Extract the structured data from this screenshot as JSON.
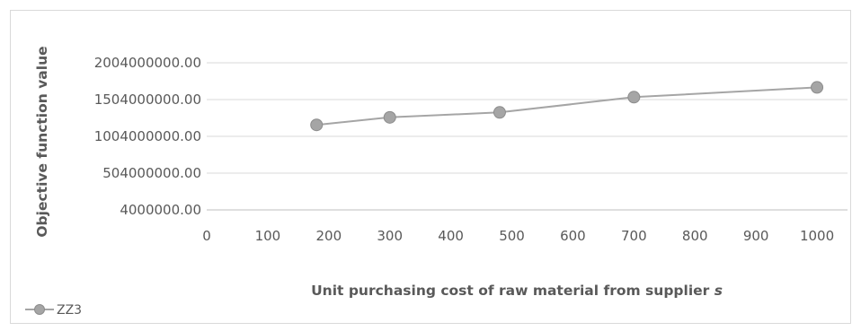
{
  "chart_data": {
    "type": "line",
    "title": "",
    "xlabel_main": "Unit purchasing cost of raw material from supplier ",
    "xlabel_italic": "s",
    "ylabel": "Objective function value",
    "x_ticks": [
      "0",
      "100",
      "200",
      "300",
      "400",
      "500",
      "600",
      "700",
      "800",
      "900",
      "1000"
    ],
    "y_ticks": [
      "4000000.00",
      "504000000.00",
      "1004000000.00",
      "1504000000.00",
      "2004000000.00"
    ],
    "xlim": [
      0,
      1050
    ],
    "ylim": [
      4000000,
      2004000000
    ],
    "grid": true,
    "legend_position": "bottom-left",
    "series": [
      {
        "name": "ZZ3",
        "color": "#a5a5a5",
        "x": [
          180,
          300,
          480,
          700,
          1000
        ],
        "y": [
          1160000000,
          1262000000,
          1330000000,
          1537000000,
          1670000000
        ]
      }
    ]
  }
}
